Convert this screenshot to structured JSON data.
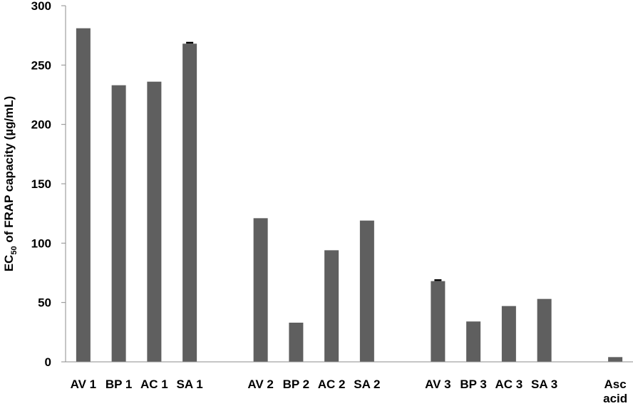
{
  "chart_data": {
    "type": "bar",
    "ylabel_main": "EC",
    "ylabel_sub": "50",
    "ylabel_rest": " of FRAP capacity (µg/mL)",
    "ylim": [
      0,
      300
    ],
    "yticks": [
      0,
      50,
      100,
      150,
      200,
      250,
      300
    ],
    "categories": [
      "AV 1",
      "BP 1",
      "AC 1",
      "SA 1",
      "",
      "AV 2",
      "BP 2",
      "AC 2",
      "SA 2",
      "",
      "AV 3",
      "BP 3",
      "AC 3",
      "SA 3",
      "",
      "Asc acid"
    ],
    "category_lines": [
      [
        "AV 1"
      ],
      [
        "BP 1"
      ],
      [
        "AC 1"
      ],
      [
        "SA 1"
      ],
      [],
      [
        "AV 2"
      ],
      [
        "BP 2"
      ],
      [
        "AC 2"
      ],
      [
        "SA 2"
      ],
      [],
      [
        "AV 3"
      ],
      [
        "BP 3"
      ],
      [
        "AC 3"
      ],
      [
        "SA 3"
      ],
      [],
      [
        "Asc",
        "acid"
      ]
    ],
    "values": [
      281,
      233,
      236,
      268,
      null,
      121,
      33,
      94,
      119,
      null,
      68,
      34,
      47,
      53,
      null,
      4
    ],
    "errors": [
      0,
      0,
      0,
      0.8,
      null,
      0,
      0,
      0,
      0,
      null,
      0.8,
      0,
      0,
      0,
      null,
      0
    ],
    "grid": false,
    "legend": "none",
    "bar_color": "#5f5f5f",
    "axis_color": "#8c8c8c"
  }
}
